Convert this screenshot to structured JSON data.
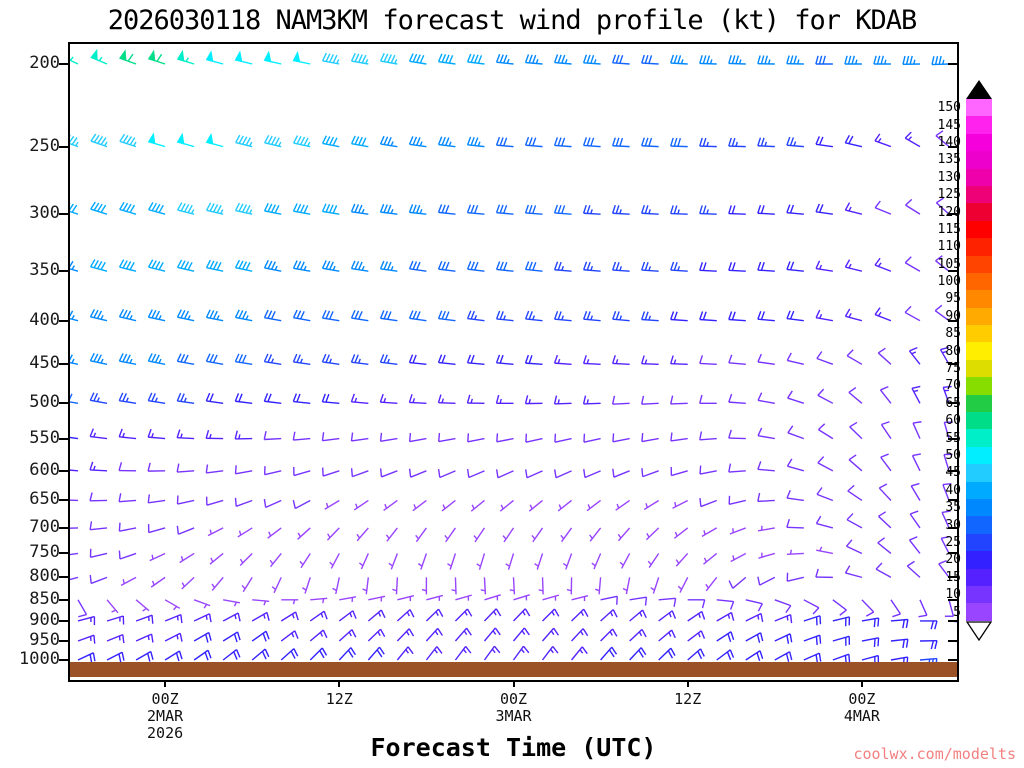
{
  "title": "2026030118 NAM3KM forecast wind profile (kt) for KDAB",
  "xlabel": "Forecast Time (UTC)",
  "watermark": "coolwx.com/modelts",
  "surface": {
    "color": "#9a5226"
  },
  "axes": {
    "pressure_levels": [
      200,
      250,
      300,
      350,
      400,
      450,
      500,
      550,
      600,
      650,
      700,
      750,
      800,
      850,
      900,
      950,
      1000
    ],
    "time_ticks": [
      {
        "t": 3,
        "lines": [
          "00Z",
          "2MAR",
          "2026"
        ]
      },
      {
        "t": 9,
        "lines": [
          "12Z"
        ]
      },
      {
        "t": 15,
        "lines": [
          "00Z",
          "3MAR"
        ]
      },
      {
        "t": 21,
        "lines": [
          "12Z"
        ]
      },
      {
        "t": 27,
        "lines": [
          "00Z",
          "4MAR"
        ]
      }
    ]
  },
  "legend": {
    "values": [
      150,
      145,
      140,
      135,
      130,
      125,
      120,
      115,
      110,
      105,
      100,
      95,
      90,
      85,
      80,
      75,
      70,
      65,
      60,
      55,
      50,
      45,
      40,
      35,
      30,
      25,
      20,
      15,
      10,
      5
    ],
    "color_map": {
      "5": "#9944ff",
      "10": "#7733ff",
      "15": "#5522ff",
      "20": "#3322ff",
      "25": "#2244ff",
      "30": "#1166ff",
      "35": "#0088ff",
      "40": "#00aaff",
      "45": "#22ccff",
      "50": "#00eeff",
      "55": "#00eec8",
      "60": "#00dd88",
      "65": "#22cc44",
      "70": "#88dd00",
      "75": "#dddd00",
      "80": "#ffee00",
      "85": "#ffcc00",
      "90": "#ffaa00",
      "95": "#ff8800",
      "100": "#ff6600",
      "105": "#ff4400",
      "110": "#ff2200",
      "115": "#ff0000",
      "120": "#ee0033",
      "125": "#ee0077",
      "130": "#ee00aa",
      "135": "#ee00cc",
      "140": "#f500dd",
      "145": "#ff22ee",
      "150": "#ff66ff"
    }
  },
  "chart_data": {
    "type": "wind-barb-time-height",
    "n_times": 31,
    "time_step_hours": 2,
    "levels_hpa": [
      200,
      250,
      300,
      350,
      400,
      450,
      500,
      550,
      600,
      650,
      700,
      750,
      800,
      850,
      900,
      950,
      1000
    ],
    "series": [
      {
        "level": 200,
        "speeds": [
          55,
          57,
          60,
          58,
          55,
          52,
          50,
          50,
          48,
          46,
          45,
          44,
          42,
          40,
          38,
          36,
          35,
          34,
          33,
          32,
          32,
          33,
          34,
          35,
          34,
          33,
          32,
          33,
          34,
          35,
          34
        ],
        "dirs": [
          295,
          293,
          290,
          288,
          287,
          285,
          284,
          283,
          282,
          281,
          280,
          280,
          279,
          278,
          277,
          276,
          275,
          275,
          274,
          274,
          273,
          273,
          272,
          272,
          271,
          271,
          270,
          270,
          270,
          269,
          268
        ]
      },
      {
        "level": 250,
        "speeds": [
          44,
          45,
          46,
          48,
          50,
          49,
          47,
          45,
          43,
          41,
          39,
          37,
          35,
          34,
          33,
          32,
          31,
          30,
          30,
          30,
          29,
          28,
          27,
          26,
          25,
          24,
          22,
          19,
          16,
          13,
          11
        ],
        "dirs": [
          290,
          289,
          288,
          287,
          286,
          285,
          284,
          283,
          282,
          281,
          280,
          279,
          278,
          277,
          276,
          275,
          275,
          274,
          274,
          273,
          273,
          272,
          272,
          272,
          273,
          275,
          278,
          283,
          290,
          300,
          310
        ]
      },
      {
        "level": 300,
        "speeds": [
          38,
          39,
          40,
          42,
          43,
          45,
          44,
          42,
          40,
          38,
          36,
          34,
          33,
          32,
          31,
          30,
          29,
          28,
          27,
          26,
          25,
          24,
          23,
          22,
          21,
          20,
          18,
          15,
          12,
          10,
          9
        ],
        "dirs": [
          288,
          287,
          286,
          285,
          284,
          283,
          282,
          281,
          280,
          279,
          278,
          277,
          276,
          276,
          275,
          275,
          274,
          274,
          273,
          273,
          273,
          272,
          272,
          272,
          273,
          275,
          278,
          284,
          292,
          302,
          312
        ]
      },
      {
        "level": 350,
        "speeds": [
          37,
          38,
          39,
          40,
          40,
          39,
          38,
          37,
          36,
          35,
          34,
          33,
          32,
          31,
          30,
          29,
          28,
          27,
          26,
          25,
          24,
          23,
          22,
          21,
          20,
          18,
          17,
          15,
          13,
          11,
          10
        ],
        "dirs": [
          286,
          285,
          284,
          284,
          283,
          282,
          282,
          281,
          280,
          280,
          279,
          278,
          278,
          277,
          277,
          276,
          276,
          275,
          275,
          274,
          274,
          274,
          273,
          273,
          274,
          276,
          279,
          284,
          291,
          300,
          308
        ]
      },
      {
        "level": 400,
        "speeds": [
          33,
          34,
          35,
          35,
          35,
          34,
          33,
          32,
          32,
          31,
          30,
          29,
          29,
          28,
          27,
          27,
          26,
          25,
          25,
          24,
          23,
          22,
          21,
          20,
          19,
          18,
          17,
          15,
          13,
          12,
          11
        ],
        "dirs": [
          284,
          283,
          283,
          282,
          282,
          281,
          281,
          280,
          280,
          279,
          279,
          278,
          278,
          277,
          277,
          276,
          276,
          275,
          275,
          275,
          274,
          274,
          274,
          274,
          275,
          277,
          280,
          285,
          291,
          299,
          306
        ]
      },
      {
        "level": 450,
        "speeds": [
          35,
          35,
          34,
          33,
          32,
          30,
          28,
          27,
          26,
          25,
          24,
          23,
          22,
          21,
          20,
          19,
          18,
          17,
          16,
          15,
          14,
          13,
          12,
          11,
          10,
          10,
          10,
          11,
          12,
          13,
          13
        ],
        "dirs": [
          282,
          282,
          281,
          281,
          280,
          280,
          279,
          279,
          278,
          278,
          277,
          277,
          276,
          276,
          275,
          275,
          274,
          274,
          273,
          273,
          272,
          272,
          273,
          275,
          278,
          283,
          290,
          300,
          312,
          322,
          330
        ]
      },
      {
        "level": 500,
        "speeds": [
          28,
          27,
          26,
          25,
          24,
          22,
          21,
          20,
          19,
          18,
          17,
          16,
          15,
          15,
          14,
          14,
          14,
          13,
          13,
          12,
          12,
          11,
          11,
          10,
          10,
          10,
          11,
          11,
          12,
          13,
          13
        ],
        "dirs": [
          280,
          280,
          279,
          279,
          278,
          278,
          277,
          277,
          276,
          275,
          275,
          274,
          273,
          272,
          271,
          270,
          269,
          268,
          268,
          267,
          267,
          268,
          270,
          274,
          280,
          288,
          298,
          310,
          322,
          332,
          340
        ]
      },
      {
        "level": 550,
        "speeds": [
          18,
          17,
          16,
          15,
          14,
          13,
          13,
          12,
          12,
          11,
          11,
          10,
          10,
          10,
          10,
          10,
          10,
          10,
          9,
          9,
          9,
          9,
          10,
          10,
          10,
          11,
          11,
          12,
          12,
          12,
          12
        ],
        "dirs": [
          278,
          277,
          276,
          275,
          273,
          271,
          269,
          267,
          265,
          263,
          262,
          261,
          260,
          260,
          259,
          259,
          258,
          258,
          258,
          259,
          260,
          262,
          266,
          272,
          280,
          290,
          302,
          314,
          326,
          336,
          344
        ]
      },
      {
        "level": 600,
        "speeds": [
          14,
          13,
          12,
          12,
          11,
          11,
          10,
          10,
          9,
          9,
          9,
          8,
          8,
          8,
          8,
          8,
          8,
          8,
          8,
          8,
          8,
          9,
          9,
          9,
          10,
          10,
          10,
          11,
          11,
          11,
          11
        ],
        "dirs": [
          275,
          273,
          271,
          269,
          266,
          263,
          260,
          257,
          254,
          252,
          250,
          249,
          248,
          247,
          247,
          246,
          246,
          246,
          247,
          248,
          250,
          254,
          259,
          266,
          275,
          286,
          298,
          311,
          323,
          334,
          343
        ]
      },
      {
        "level": 650,
        "speeds": [
          12,
          11,
          10,
          10,
          9,
          9,
          8,
          8,
          8,
          7,
          7,
          7,
          7,
          6,
          6,
          6,
          6,
          6,
          7,
          7,
          7,
          7,
          8,
          8,
          8,
          9,
          9,
          9,
          10,
          10,
          10
        ],
        "dirs": [
          272,
          269,
          266,
          262,
          258,
          254,
          250,
          246,
          242,
          239,
          236,
          234,
          233,
          232,
          231,
          231,
          231,
          232,
          233,
          235,
          238,
          243,
          249,
          257,
          267,
          278,
          291,
          304,
          317,
          329,
          339
        ]
      },
      {
        "level": 700,
        "speeds": [
          10,
          9,
          9,
          8,
          8,
          7,
          7,
          6,
          6,
          6,
          5,
          5,
          5,
          5,
          5,
          5,
          5,
          5,
          5,
          6,
          6,
          6,
          7,
          7,
          7,
          8,
          8,
          8,
          9,
          9,
          9
        ],
        "dirs": [
          268,
          264,
          259,
          254,
          248,
          243,
          238,
          233,
          228,
          224,
          221,
          218,
          216,
          215,
          214,
          214,
          215,
          216,
          218,
          221,
          226,
          232,
          240,
          249,
          260,
          272,
          285,
          299,
          313,
          325,
          336
        ]
      },
      {
        "level": 750,
        "speeds": [
          9,
          8,
          8,
          7,
          7,
          6,
          6,
          5,
          5,
          5,
          5,
          4,
          4,
          4,
          4,
          4,
          4,
          5,
          5,
          5,
          5,
          6,
          6,
          6,
          7,
          7,
          7,
          8,
          8,
          8,
          8
        ],
        "dirs": [
          262,
          257,
          251,
          245,
          238,
          231,
          225,
          219,
          213,
          208,
          204,
          201,
          199,
          198,
          197,
          197,
          198,
          200,
          203,
          208,
          214,
          222,
          231,
          242,
          254,
          267,
          281,
          295,
          309,
          322,
          333
        ]
      },
      {
        "level": 800,
        "speeds": [
          8,
          8,
          7,
          7,
          6,
          6,
          5,
          5,
          5,
          5,
          5,
          5,
          5,
          5,
          5,
          5,
          5,
          6,
          6,
          6,
          7,
          7,
          7,
          8,
          8,
          9,
          9,
          10,
          10,
          10,
          10
        ],
        "dirs": [
          255,
          249,
          242,
          235,
          227,
          220,
          212,
          205,
          198,
          192,
          187,
          183,
          180,
          178,
          177,
          177,
          178,
          181,
          185,
          191,
          198,
          207,
          218,
          230,
          243,
          257,
          271,
          285,
          299,
          312,
          323
        ]
      },
      {
        "level": 850,
        "speeds": [
          8,
          7,
          7,
          6,
          6,
          6,
          5,
          5,
          5,
          5,
          5,
          6,
          6,
          6,
          6,
          7,
          7,
          7,
          8,
          8,
          8,
          9,
          9,
          10,
          10,
          11,
          11,
          12,
          12,
          12,
          12
        ],
        "dirs": [
          150,
          140,
          130,
          120,
          110,
          100,
          95,
          90,
          85,
          80,
          78,
          76,
          75,
          74,
          73,
          73,
          74,
          76,
          78,
          81,
          85,
          90,
          96,
          103,
          110,
          118,
          127,
          136,
          146,
          156,
          165
        ]
      },
      {
        "level": 900,
        "speeds": [
          15,
          15,
          16,
          16,
          17,
          17,
          17,
          16,
          16,
          15,
          15,
          14,
          14,
          13,
          13,
          13,
          13,
          14,
          14,
          15,
          15,
          16,
          16,
          17,
          17,
          18,
          18,
          18,
          19,
          19,
          19
        ],
        "dirs": [
          75,
          73,
          70,
          68,
          65,
          62,
          60,
          58,
          55,
          53,
          50,
          48,
          46,
          45,
          44,
          44,
          45,
          46,
          48,
          50,
          53,
          56,
          60,
          64,
          68,
          72,
          76,
          80,
          85,
          90,
          95
        ]
      },
      {
        "level": 950,
        "speeds": [
          16,
          16,
          17,
          17,
          18,
          18,
          18,
          17,
          17,
          16,
          16,
          15,
          15,
          15,
          14,
          14,
          15,
          15,
          16,
          16,
          17,
          17,
          18,
          18,
          19,
          19,
          20,
          20,
          20,
          21,
          21
        ],
        "dirs": [
          70,
          68,
          66,
          63,
          60,
          58,
          55,
          53,
          50,
          48,
          46,
          44,
          42,
          41,
          40,
          40,
          41,
          43,
          45,
          47,
          50,
          53,
          57,
          61,
          65,
          70,
          74,
          79,
          84,
          89,
          93
        ]
      },
      {
        "level": 1000,
        "speeds": [
          18,
          18,
          19,
          19,
          20,
          20,
          20,
          19,
          19,
          18,
          18,
          17,
          17,
          17,
          16,
          16,
          17,
          17,
          18,
          18,
          19,
          19,
          20,
          20,
          21,
          21,
          22,
          22,
          22,
          23,
          23
        ],
        "dirs": [
          65,
          63,
          60,
          58,
          55,
          52,
          50,
          48,
          45,
          43,
          41,
          39,
          38,
          37,
          36,
          36,
          37,
          39,
          41,
          43,
          46,
          49,
          53,
          57,
          61,
          66,
          70,
          75,
          80,
          85,
          89
        ]
      }
    ]
  }
}
